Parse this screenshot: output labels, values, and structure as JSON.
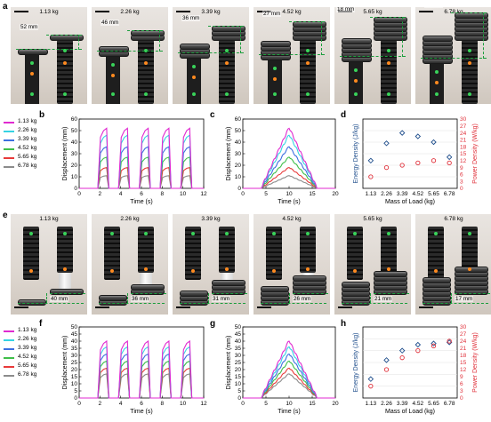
{
  "panel_labels": {
    "a": "a",
    "b": "b",
    "c": "c",
    "d": "d",
    "e": "e",
    "f": "f",
    "g": "g",
    "h": "h"
  },
  "colors": {
    "c1": "#e02ad0",
    "c2": "#35d3e3",
    "c3": "#3d6fe0",
    "c4": "#3fbf4a",
    "c5": "#e83a3a",
    "c6": "#8c8c8c",
    "energy": "#1f4e8c",
    "power": "#e0303a",
    "marker_green": "#39d35a",
    "marker_orange": "#ff8a1f",
    "dash": "#1a9e3c"
  },
  "row_a": {
    "photos": [
      {
        "mass": "1.13 kg",
        "gap": "52 mm"
      },
      {
        "mass": "2.26 kg",
        "gap": "46 mm"
      },
      {
        "mass": "3.39 kg",
        "gap": "36 mm"
      },
      {
        "mass": "4.52 kg",
        "gap": "27 mm"
      },
      {
        "mass": "5.65 kg",
        "gap": "18 mm"
      },
      {
        "mass": "6.78 kg",
        "gap": "11 mm"
      }
    ]
  },
  "row_e": {
    "photos": [
      {
        "mass": "1.13 kg",
        "gap": "40 mm"
      },
      {
        "mass": "2.26 kg",
        "gap": "36 mm"
      },
      {
        "mass": "3.39 kg",
        "gap": "31 mm"
      },
      {
        "mass": "4.52 kg",
        "gap": "26 mm"
      },
      {
        "mass": "5.65 kg",
        "gap": "21 mm"
      },
      {
        "mass": "6.78 kg",
        "gap": "17 mm"
      }
    ]
  },
  "legend": [
    "1.13 kg",
    "2.26 kg",
    "3.39 kg",
    "4.52 kg",
    "5.65 kg",
    "6.78 kg"
  ],
  "chart_data": [
    {
      "id": "b",
      "type": "line",
      "xlabel": "Time (s)",
      "ylabel": "Displacement (mm)",
      "xlim": [
        0,
        12
      ],
      "ylim": [
        0,
        60
      ],
      "xticks": [
        0,
        2,
        4,
        6,
        8,
        10,
        12
      ],
      "yticks": [
        0,
        10,
        20,
        30,
        40,
        50,
        60
      ],
      "pulse_starts": [
        1.8,
        3.8,
        5.8,
        7.8,
        9.8
      ],
      "series": [
        {
          "name": "1.13 kg",
          "peak": 52
        },
        {
          "name": "2.26 kg",
          "peak": 46
        },
        {
          "name": "3.39 kg",
          "peak": 36
        },
        {
          "name": "4.52 kg",
          "peak": 27
        },
        {
          "name": "5.65 kg",
          "peak": 18
        },
        {
          "name": "6.78 kg",
          "peak": 11
        }
      ]
    },
    {
      "id": "c",
      "type": "line",
      "xlabel": "Time (s)",
      "ylabel": "Displacement (mm)",
      "xlim": [
        0,
        20
      ],
      "ylim": [
        0,
        60
      ],
      "xticks": [
        0,
        5,
        10,
        15,
        20
      ],
      "yticks": [
        0,
        10,
        20,
        30,
        40,
        50,
        60
      ],
      "ramp": [
        4,
        10,
        16
      ],
      "series": [
        {
          "name": "1.13 kg",
          "peak": 52
        },
        {
          "name": "2.26 kg",
          "peak": 46
        },
        {
          "name": "3.39 kg",
          "peak": 36
        },
        {
          "name": "4.52 kg",
          "peak": 27
        },
        {
          "name": "5.65 kg",
          "peak": 18
        },
        {
          "name": "6.78 kg",
          "peak": 11
        }
      ]
    },
    {
      "id": "d",
      "type": "scatter",
      "xlabel": "Mass of Load (kg)",
      "ylabel_left": "Energy Density (J/kg)",
      "ylabel_right": "Power Density (W/kg)",
      "categories": [
        "1.13",
        "2.26",
        "3.39",
        "4.52",
        "5.65",
        "6.78"
      ],
      "yticks_right": [
        0,
        3,
        6,
        9,
        12,
        15,
        18,
        21,
        24,
        27,
        30
      ],
      "ylim_right": [
        0,
        30
      ],
      "energy_on_right_scale": [
        12,
        19.5,
        24,
        22.5,
        20,
        13.5
      ],
      "power": [
        5,
        9,
        10,
        11,
        12,
        11
      ]
    },
    {
      "id": "f",
      "type": "line",
      "xlabel": "Time (s)",
      "ylabel": "Displacement (mm)",
      "xlim": [
        0,
        12
      ],
      "ylim": [
        0,
        50
      ],
      "xticks": [
        0,
        2,
        4,
        6,
        8,
        10,
        12
      ],
      "yticks": [
        0,
        5,
        10,
        15,
        20,
        25,
        30,
        35,
        40,
        45,
        50
      ],
      "pulse_starts": [
        1.8,
        3.8,
        5.8,
        7.8,
        9.8
      ],
      "series": [
        {
          "name": "1.13 kg",
          "peak": 40
        },
        {
          "name": "2.26 kg",
          "peak": 36
        },
        {
          "name": "3.39 kg",
          "peak": 31
        },
        {
          "name": "4.52 kg",
          "peak": 26
        },
        {
          "name": "5.65 kg",
          "peak": 21
        },
        {
          "name": "6.78 kg",
          "peak": 17
        }
      ]
    },
    {
      "id": "g",
      "type": "line",
      "xlabel": "Time (s)",
      "ylabel": "Displacement (mm)",
      "xlim": [
        0,
        20
      ],
      "ylim": [
        0,
        50
      ],
      "xticks": [
        0,
        5,
        10,
        15,
        20
      ],
      "yticks": [
        0,
        5,
        10,
        15,
        20,
        25,
        30,
        35,
        40,
        45,
        50
      ],
      "ramp": [
        4,
        10,
        16
      ],
      "series": [
        {
          "name": "1.13 kg",
          "peak": 40
        },
        {
          "name": "2.26 kg",
          "peak": 36
        },
        {
          "name": "3.39 kg",
          "peak": 31
        },
        {
          "name": "4.52 kg",
          "peak": 26
        },
        {
          "name": "5.65 kg",
          "peak": 21
        },
        {
          "name": "6.78 kg",
          "peak": 17
        }
      ]
    },
    {
      "id": "h",
      "type": "scatter",
      "xlabel": "Mass of Load (kg)",
      "ylabel_left": "Energy Density (J/kg)",
      "ylabel_right": "Power Density (W/kg)",
      "categories": [
        "1.13",
        "2.26",
        "3.39",
        "4.52",
        "5.65",
        "6.78"
      ],
      "yticks_right": [
        0,
        3,
        6,
        9,
        12,
        15,
        18,
        21,
        24,
        27,
        30
      ],
      "ylim_right": [
        0,
        30
      ],
      "energy_on_right_scale": [
        8,
        16,
        20,
        22.5,
        23,
        23.5
      ],
      "power": [
        5,
        12,
        17,
        20,
        22,
        24
      ]
    }
  ]
}
